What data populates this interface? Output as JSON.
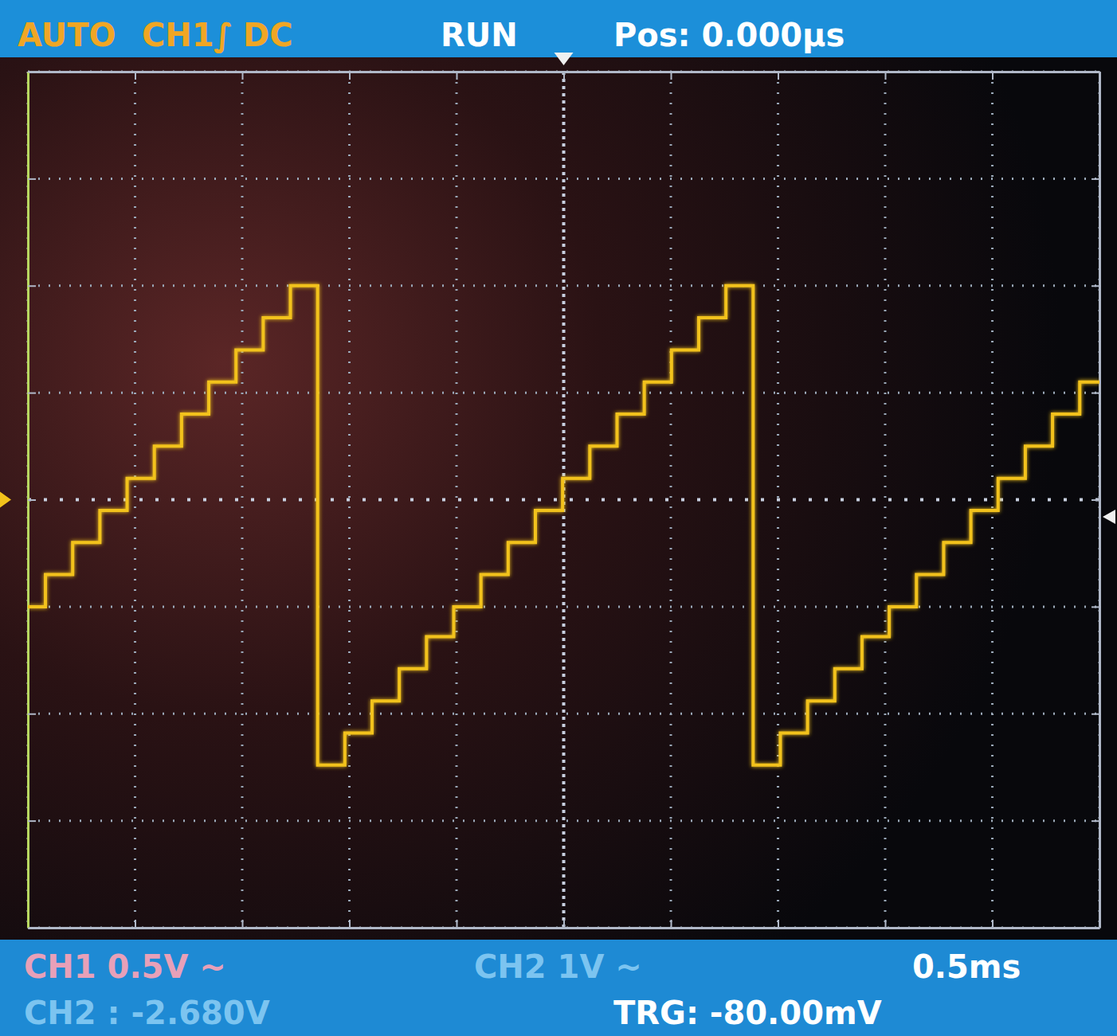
{
  "chart_data": {
    "type": "line",
    "annotations": [
      "AUTO",
      "CH1",
      "∫",
      "DC",
      "RUN",
      "Pos: 0.000µs",
      "CH1 0.5V ~",
      "CH2 1V ~",
      "0.5ms",
      "CH2 : -2.680V",
      "TRG: -80.00mV"
    ],
    "x": [
      -2.5,
      -2.418,
      -2.291,
      -2.164,
      -2.037,
      -1.91,
      -1.783,
      -1.656,
      -1.529,
      -1.402,
      -1.275,
      -1.148,
      -1.021,
      -0.894,
      -0.767,
      -0.64,
      -0.513,
      -0.386,
      -0.259,
      -0.132,
      -0.005,
      0.122,
      0.249,
      0.376,
      0.503,
      0.63,
      0.757,
      0.884,
      1.011,
      1.138,
      1.265,
      1.392,
      1.519,
      1.646,
      1.773,
      1.9,
      2.027,
      2.154,
      2.281,
      2.408,
      2.5
    ],
    "values": [
      -0.5,
      -0.35,
      -0.2,
      -0.05,
      0.1,
      0.25,
      0.4,
      0.55,
      0.7,
      0.85,
      1.0,
      -1.24,
      -1.09,
      -0.94,
      -0.79,
      -0.64,
      -0.5,
      -0.35,
      -0.2,
      -0.05,
      0.1,
      0.25,
      0.4,
      0.55,
      0.7,
      0.85,
      1.0,
      -1.24,
      -1.09,
      -0.94,
      -0.79,
      -0.64,
      -0.5,
      -0.35,
      -0.2,
      -0.05,
      0.1,
      0.25,
      0.4,
      0.55,
      0.55
    ],
    "color": "#f2c21b",
    "line_style": "step",
    "xlim": [
      -2.5,
      2.5
    ],
    "xticks": [
      -2.5,
      -2,
      -1.5,
      -1,
      -0.5,
      0,
      0.5,
      1,
      1.5,
      2,
      2.5
    ],
    "ylim": [
      -2,
      2
    ],
    "yticks": [
      -2,
      -1.5,
      -1,
      -0.5,
      0,
      0.5,
      1,
      1.5,
      2
    ],
    "grid": true,
    "tick_labels": false,
    "trigger_level": -0.08,
    "trigger_position": 0
  }
}
